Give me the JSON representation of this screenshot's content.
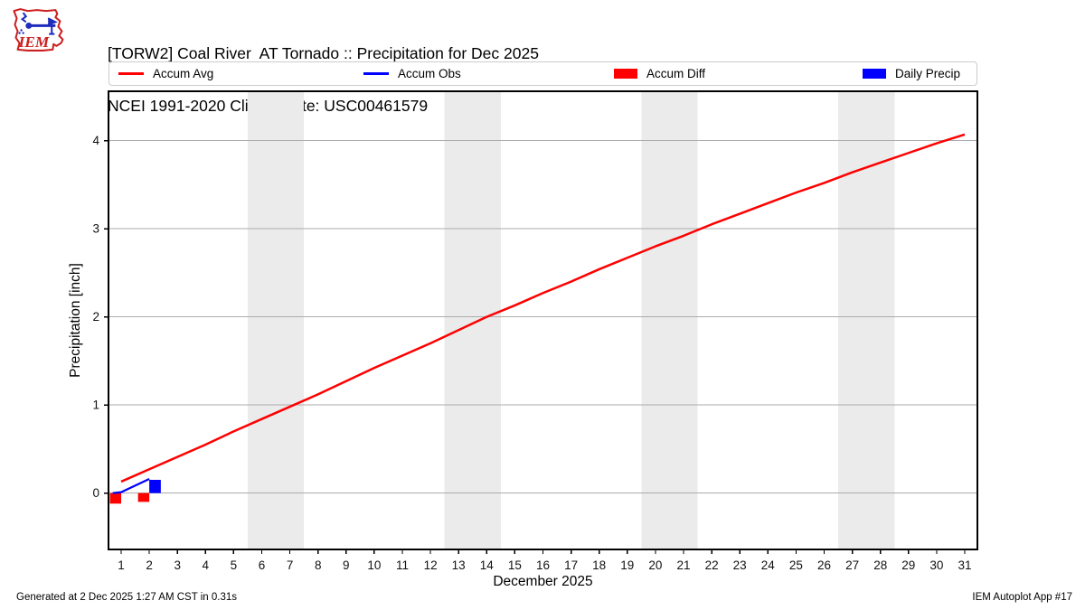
{
  "header": {
    "title_line1": "[TORW2] Coal River  AT Tornado :: Precipitation for Dec 2025",
    "title_line2": "NCEI 1991-2020 Climate Site: USC00461579",
    "logo_text": "IEM"
  },
  "legend": {
    "items": [
      {
        "label": "Accum Avg",
        "swatch": "line",
        "color": "#ff0000"
      },
      {
        "label": "Accum Obs",
        "swatch": "line",
        "color": "#0000ff"
      },
      {
        "label": "Accum Diff",
        "swatch": "box",
        "color": "#ff0000"
      },
      {
        "label": "Daily Precip",
        "swatch": "box",
        "color": "#0000ff"
      }
    ]
  },
  "footer": {
    "left": "Generated at 2 Dec 2025 1:27 AM CST in 0.31s",
    "right": "IEM Autoplot App #17"
  },
  "chart_data": {
    "type": "line+bar",
    "title": "[TORW2] Coal River AT Tornado :: Precipitation for Dec 2025",
    "xlabel": "December 2025",
    "ylabel": "Precipitation [inch]",
    "xlim": [
      0.55,
      31.45
    ],
    "ylim": [
      -0.64,
      4.56
    ],
    "x_ticks": [
      1,
      2,
      3,
      4,
      5,
      6,
      7,
      8,
      9,
      10,
      11,
      12,
      13,
      14,
      15,
      16,
      17,
      18,
      19,
      20,
      21,
      22,
      23,
      24,
      25,
      26,
      27,
      28,
      29,
      30,
      31
    ],
    "y_ticks": [
      0,
      1,
      2,
      3,
      4
    ],
    "grid": true,
    "grid_color": "#ababab",
    "band_color": "#ebebeb",
    "spine_color": "#000000",
    "weekend_bands": [
      [
        5.5,
        7.5
      ],
      [
        12.5,
        14.5
      ],
      [
        19.5,
        21.5
      ],
      [
        26.5,
        28.5
      ]
    ],
    "series": [
      {
        "name": "Accum Avg",
        "kind": "line",
        "color": "#ff0000",
        "width": 2.5,
        "x": [
          1,
          2,
          3,
          4,
          5,
          6,
          7,
          8,
          9,
          10,
          11,
          12,
          13,
          14,
          15,
          16,
          17,
          18,
          19,
          20,
          21,
          22,
          23,
          24,
          25,
          26,
          27,
          28,
          29,
          30,
          31
        ],
        "y": [
          0.13,
          0.27,
          0.41,
          0.55,
          0.7,
          0.84,
          0.98,
          1.12,
          1.27,
          1.42,
          1.56,
          1.7,
          1.85,
          2.0,
          2.13,
          2.27,
          2.4,
          2.54,
          2.67,
          2.8,
          2.92,
          3.05,
          3.17,
          3.29,
          3.41,
          3.52,
          3.64,
          3.75,
          3.86,
          3.97,
          4.07
        ]
      },
      {
        "name": "Accum Obs",
        "kind": "line",
        "color": "#0000ff",
        "width": 2.3,
        "x": [
          0.7,
          1,
          2
        ],
        "y": [
          0.0,
          0.01,
          0.16
        ]
      },
      {
        "name": "Accum Diff",
        "kind": "bar",
        "color": "#ff0000",
        "align": "left",
        "bar_width_days": 0.4,
        "x": [
          1,
          2
        ],
        "y": [
          -0.12,
          -0.1
        ]
      },
      {
        "name": "Daily Precip",
        "kind": "bar",
        "color": "#0000ff",
        "align": "right",
        "bar_width_days": 0.41,
        "x": [
          2
        ],
        "y": [
          0.15
        ]
      }
    ]
  }
}
